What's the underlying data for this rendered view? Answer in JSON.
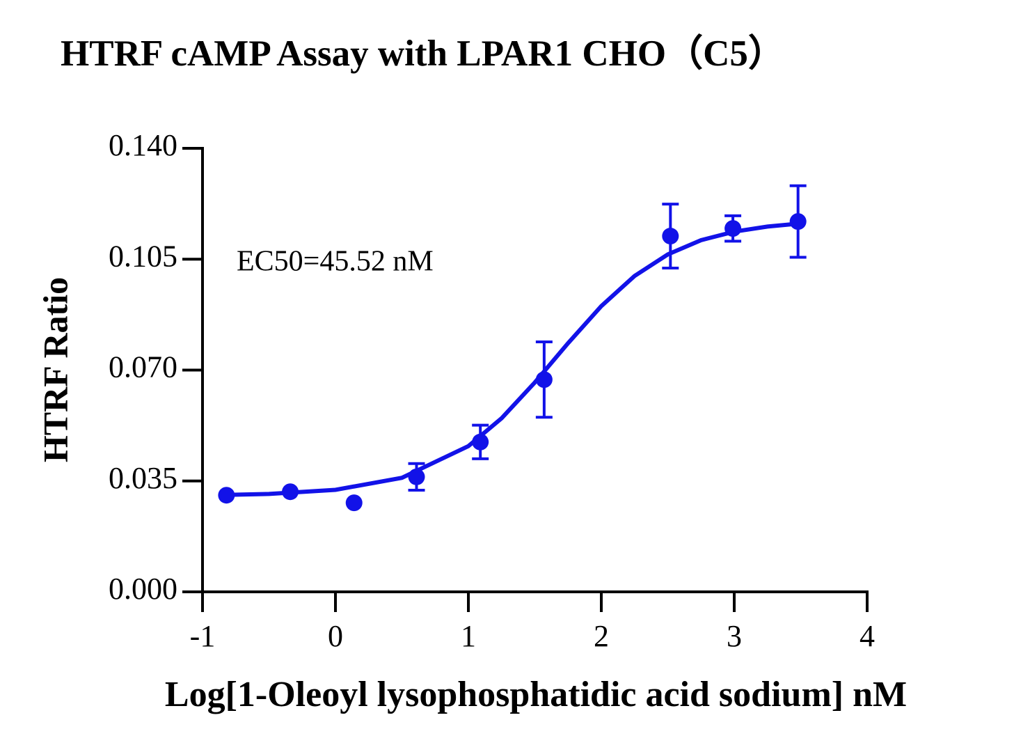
{
  "chart_data": {
    "type": "scatter",
    "title": "HTRF cAMP Assay with LPAR1 CHO（C5）",
    "x_label": "Log[1-Oleoyl lysophosphatidic acid sodium] nM",
    "y_label": "HTRF Ratio",
    "annotation": "EC50=45.52 nM",
    "xlim": [
      -1,
      4
    ],
    "xticks": [
      -1,
      0,
      1,
      2,
      3,
      4
    ],
    "ylim": [
      0,
      0.14
    ],
    "yticks": [
      {
        "value": 0,
        "label": "0.000"
      },
      {
        "value": 0.035,
        "label": "0.035"
      },
      {
        "value": 0.07,
        "label": "0.070"
      },
      {
        "value": 0.105,
        "label": "0.105"
      },
      {
        "value": 0.14,
        "label": "0.140"
      }
    ],
    "color": "#1212e8",
    "points": {
      "x": [
        -0.82,
        -0.34,
        0.14,
        0.61,
        1.09,
        1.57,
        2.52,
        2.99,
        3.48
      ],
      "values": [
        0.0305,
        0.0316,
        0.0281,
        0.0363,
        0.0473,
        0.067,
        0.1123,
        0.1147,
        0.1169
      ],
      "errors": [
        null,
        null,
        null,
        0.0042,
        0.0053,
        0.0119,
        0.0101,
        0.004,
        0.0113
      ]
    },
    "curve": {
      "x": [
        -0.82,
        -0.5,
        0,
        0.5,
        1,
        1.25,
        1.5,
        1.75,
        2,
        2.25,
        2.5,
        2.75,
        3,
        3.25,
        3.48
      ],
      "values": [
        0.0306,
        0.0309,
        0.0322,
        0.036,
        0.046,
        0.0548,
        0.0661,
        0.0785,
        0.0902,
        0.0997,
        0.1065,
        0.111,
        0.1137,
        0.1153,
        0.1162
      ]
    }
  }
}
